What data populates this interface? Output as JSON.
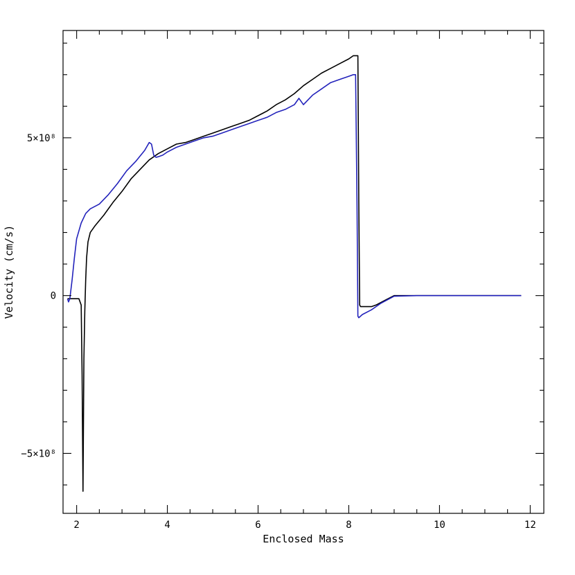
{
  "chart_data": {
    "type": "line",
    "xlabel": "Enclosed Mass",
    "ylabel": "Velocity (cm/s)",
    "xlim": [
      1.7,
      12.3
    ],
    "ylim": [
      -690000000.0,
      840000000.0
    ],
    "grid": false,
    "x_ticks": [
      {
        "value": 2,
        "label": "2"
      },
      {
        "value": 4,
        "label": "4"
      },
      {
        "value": 6,
        "label": "6"
      },
      {
        "value": 8,
        "label": "8"
      },
      {
        "value": 10,
        "label": "10"
      },
      {
        "value": 12,
        "label": "12"
      }
    ],
    "x_minor_step": 0.5,
    "y_ticks": [
      {
        "value": 500000000.0,
        "label": "5×10⁸"
      },
      {
        "value": 0,
        "label": "0"
      },
      {
        "value": -500000000.0,
        "label": "−5×10⁸"
      }
    ],
    "y_minor_step": 100000000.0,
    "series": [
      {
        "color": "#000000",
        "x": [
          1.8,
          1.85,
          1.9,
          1.95,
          2.0,
          2.05,
          2.1,
          2.12,
          2.14,
          2.16,
          2.18,
          2.2,
          2.22,
          2.25,
          2.3,
          2.4,
          2.6,
          2.8,
          3.0,
          3.2,
          3.4,
          3.6,
          3.8,
          4.0,
          4.2,
          4.4,
          4.6,
          4.8,
          5.0,
          5.2,
          5.4,
          5.6,
          5.8,
          6.0,
          6.2,
          6.4,
          6.6,
          6.8,
          7.0,
          7.2,
          7.4,
          7.6,
          7.8,
          8.0,
          8.1,
          8.2,
          8.22,
          8.24,
          8.26,
          8.3,
          8.4,
          8.5,
          8.6,
          8.8,
          9.0,
          9.2,
          9.5,
          10.0,
          10.5,
          11.0,
          11.5,
          11.8
        ],
        "values": [
          -10000000.0,
          -10000000.0,
          -10000000.0,
          -10000000.0,
          -10000000.0,
          -10000000.0,
          -30000000.0,
          -250000000.0,
          -620000000.0,
          -200000000.0,
          -50000000.0,
          50000000.0,
          120000000.0,
          170000000.0,
          200000000.0,
          220000000.0,
          255000000.0,
          295000000.0,
          330000000.0,
          370000000.0,
          400000000.0,
          430000000.0,
          450000000.0,
          465000000.0,
          480000000.0,
          485000000.0,
          495000000.0,
          505000000.0,
          515000000.0,
          525000000.0,
          535000000.0,
          545000000.0,
          555000000.0,
          570000000.0,
          585000000.0,
          605000000.0,
          620000000.0,
          640000000.0,
          665000000.0,
          685000000.0,
          705000000.0,
          720000000.0,
          735000000.0,
          750000000.0,
          760000000.0,
          760000000.0,
          300000000.0,
          -30000000.0,
          -35000000.0,
          -35000000.0,
          -35000000.0,
          -35000000.0,
          -30000000.0,
          -15000000.0,
          0,
          0,
          0,
          0,
          0,
          0,
          0,
          0
        ]
      },
      {
        "color": "#2222bb",
        "x": [
          1.8,
          1.82,
          1.85,
          1.9,
          1.95,
          2.0,
          2.1,
          2.2,
          2.3,
          2.5,
          2.7,
          2.9,
          3.1,
          3.3,
          3.5,
          3.6,
          3.65,
          3.7,
          3.75,
          3.8,
          3.9,
          4.0,
          4.2,
          4.4,
          4.6,
          4.8,
          5.0,
          5.2,
          5.4,
          5.6,
          5.8,
          6.0,
          6.2,
          6.4,
          6.6,
          6.8,
          6.9,
          7.0,
          7.2,
          7.4,
          7.6,
          7.8,
          8.0,
          8.1,
          8.15,
          8.18,
          8.2,
          8.22,
          8.3,
          8.5,
          8.7,
          9.0,
          9.5,
          10.0,
          11.0,
          11.8
        ],
        "values": [
          -10000000.0,
          -20000000.0,
          -10000000.0,
          50000000.0,
          120000000.0,
          180000000.0,
          230000000.0,
          260000000.0,
          275000000.0,
          290000000.0,
          320000000.0,
          355000000.0,
          395000000.0,
          425000000.0,
          460000000.0,
          485000000.0,
          480000000.0,
          445000000.0,
          438000000.0,
          440000000.0,
          445000000.0,
          455000000.0,
          470000000.0,
          480000000.0,
          490000000.0,
          500000000.0,
          505000000.0,
          515000000.0,
          525000000.0,
          535000000.0,
          545000000.0,
          555000000.0,
          565000000.0,
          580000000.0,
          590000000.0,
          605000000.0,
          625000000.0,
          605000000.0,
          635000000.0,
          655000000.0,
          675000000.0,
          685000000.0,
          695000000.0,
          700000000.0,
          700000000.0,
          300000000.0,
          -65000000.0,
          -70000000.0,
          -60000000.0,
          -45000000.0,
          -25000000.0,
          -2000000.0,
          0,
          0,
          0,
          0
        ]
      }
    ]
  }
}
